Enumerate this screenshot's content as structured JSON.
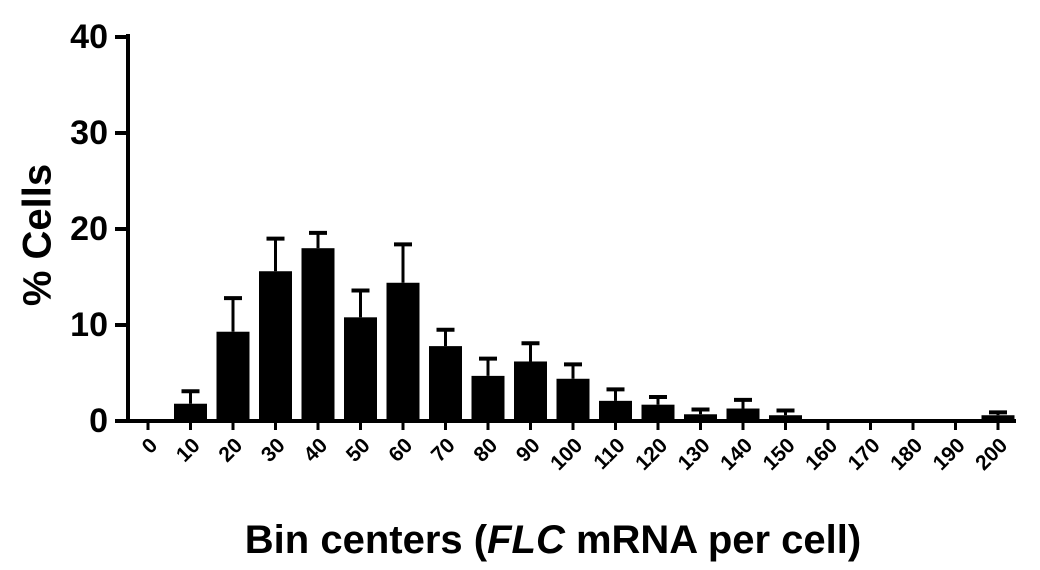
{
  "chart_data": {
    "type": "bar",
    "title": "",
    "ylabel": "% Cells",
    "xlabel_parts": [
      {
        "text": "Bin centers (",
        "italic": false
      },
      {
        "text": "FLC",
        "italic": true
      },
      {
        "text": " mRNA per cell)",
        "italic": false
      }
    ],
    "ylim": [
      0,
      40
    ],
    "yticks": [
      0,
      10,
      20,
      30,
      40
    ],
    "categories": [
      "0",
      "10",
      "20",
      "30",
      "40",
      "50",
      "60",
      "70",
      "80",
      "90",
      "100",
      "110",
      "120",
      "130",
      "140",
      "150",
      "160",
      "170",
      "180",
      "190",
      "200"
    ],
    "values": [
      0,
      1.8,
      9.3,
      15.6,
      18.0,
      10.8,
      14.4,
      7.8,
      4.7,
      6.2,
      4.4,
      2.1,
      1.7,
      0.7,
      1.3,
      0.6,
      0,
      0,
      0,
      0,
      0.6
    ],
    "errors": [
      0,
      1.3,
      3.5,
      3.4,
      1.6,
      2.8,
      4.0,
      1.7,
      1.8,
      1.9,
      1.5,
      1.2,
      0.8,
      0.5,
      0.9,
      0.5,
      0,
      0,
      0,
      0,
      0.3
    ],
    "bar_color": "#000000",
    "grid": false,
    "legend": "none"
  }
}
